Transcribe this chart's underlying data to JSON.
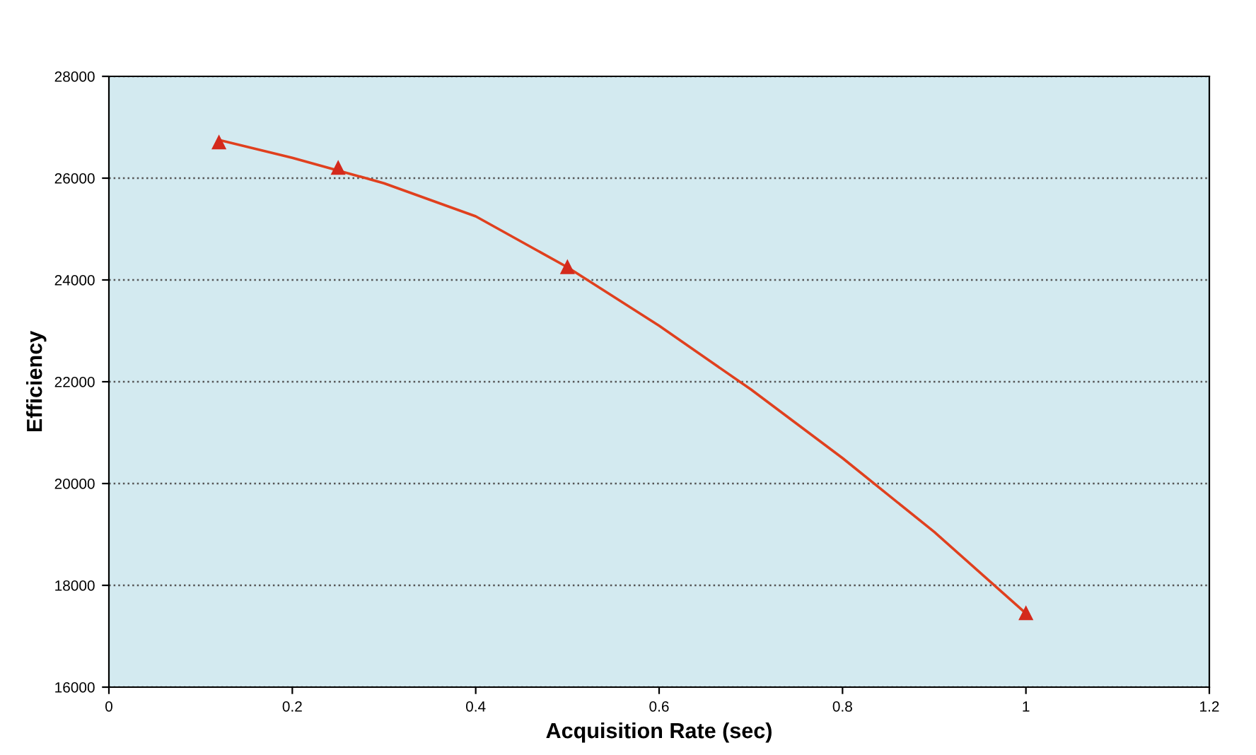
{
  "chart_data": {
    "type": "scatter",
    "xlabel": "Acquisition Rate (sec)",
    "ylabel": "Efficiency",
    "x": [
      0.12,
      0.25,
      0.5,
      1.0
    ],
    "series": [
      {
        "color": "#e0401e",
        "type": "line",
        "marker": "none",
        "x": [
          0.12,
          0.2,
          0.25,
          0.3,
          0.4,
          0.5,
          0.6,
          0.7,
          0.8,
          0.9,
          1.0
        ],
        "values": [
          26750,
          26400,
          26150,
          25900,
          25250,
          24250,
          23100,
          21850,
          20500,
          19050,
          17450
        ]
      },
      {
        "color": "#d42a1c",
        "values": [
          26700,
          26200,
          24250,
          17450
        ]
      }
    ],
    "marker": "triangle",
    "line_style": "solid",
    "xlim": [
      0,
      1.2
    ],
    "xticks": [
      0,
      0.2,
      0.4,
      0.6,
      0.8,
      1,
      1.2
    ],
    "ylim": [
      16000,
      28000
    ],
    "yticks": [
      16000,
      18000,
      20000,
      22000,
      24000,
      26000,
      28000
    ],
    "grid": "y",
    "legend": false
  }
}
